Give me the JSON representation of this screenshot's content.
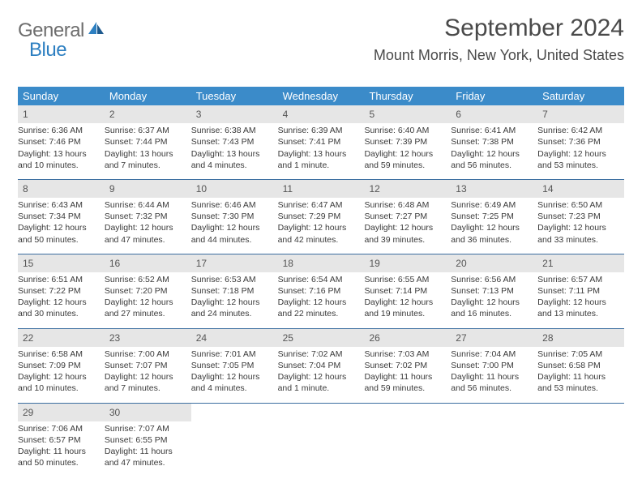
{
  "brand": {
    "part1": "General",
    "part2": "Blue"
  },
  "title": "September 2024",
  "location": "Mount Morris, New York, United States",
  "colors": {
    "header_bg": "#3b8bc9",
    "header_text": "#ffffff",
    "daynum_bg": "#e6e6e6",
    "row_border": "#3b6ea0",
    "logo_gray": "#6e6e6e",
    "logo_blue": "#2d7fc1",
    "text": "#3a3a3a"
  },
  "day_names": [
    "Sunday",
    "Monday",
    "Tuesday",
    "Wednesday",
    "Thursday",
    "Friday",
    "Saturday"
  ],
  "weeks": [
    [
      {
        "n": "1",
        "sr": "6:36 AM",
        "ss": "7:46 PM",
        "dl": "13 hours and 10 minutes."
      },
      {
        "n": "2",
        "sr": "6:37 AM",
        "ss": "7:44 PM",
        "dl": "13 hours and 7 minutes."
      },
      {
        "n": "3",
        "sr": "6:38 AM",
        "ss": "7:43 PM",
        "dl": "13 hours and 4 minutes."
      },
      {
        "n": "4",
        "sr": "6:39 AM",
        "ss": "7:41 PM",
        "dl": "13 hours and 1 minute."
      },
      {
        "n": "5",
        "sr": "6:40 AM",
        "ss": "7:39 PM",
        "dl": "12 hours and 59 minutes."
      },
      {
        "n": "6",
        "sr": "6:41 AM",
        "ss": "7:38 PM",
        "dl": "12 hours and 56 minutes."
      },
      {
        "n": "7",
        "sr": "6:42 AM",
        "ss": "7:36 PM",
        "dl": "12 hours and 53 minutes."
      }
    ],
    [
      {
        "n": "8",
        "sr": "6:43 AM",
        "ss": "7:34 PM",
        "dl": "12 hours and 50 minutes."
      },
      {
        "n": "9",
        "sr": "6:44 AM",
        "ss": "7:32 PM",
        "dl": "12 hours and 47 minutes."
      },
      {
        "n": "10",
        "sr": "6:46 AM",
        "ss": "7:30 PM",
        "dl": "12 hours and 44 minutes."
      },
      {
        "n": "11",
        "sr": "6:47 AM",
        "ss": "7:29 PM",
        "dl": "12 hours and 42 minutes."
      },
      {
        "n": "12",
        "sr": "6:48 AM",
        "ss": "7:27 PM",
        "dl": "12 hours and 39 minutes."
      },
      {
        "n": "13",
        "sr": "6:49 AM",
        "ss": "7:25 PM",
        "dl": "12 hours and 36 minutes."
      },
      {
        "n": "14",
        "sr": "6:50 AM",
        "ss": "7:23 PM",
        "dl": "12 hours and 33 minutes."
      }
    ],
    [
      {
        "n": "15",
        "sr": "6:51 AM",
        "ss": "7:22 PM",
        "dl": "12 hours and 30 minutes."
      },
      {
        "n": "16",
        "sr": "6:52 AM",
        "ss": "7:20 PM",
        "dl": "12 hours and 27 minutes."
      },
      {
        "n": "17",
        "sr": "6:53 AM",
        "ss": "7:18 PM",
        "dl": "12 hours and 24 minutes."
      },
      {
        "n": "18",
        "sr": "6:54 AM",
        "ss": "7:16 PM",
        "dl": "12 hours and 22 minutes."
      },
      {
        "n": "19",
        "sr": "6:55 AM",
        "ss": "7:14 PM",
        "dl": "12 hours and 19 minutes."
      },
      {
        "n": "20",
        "sr": "6:56 AM",
        "ss": "7:13 PM",
        "dl": "12 hours and 16 minutes."
      },
      {
        "n": "21",
        "sr": "6:57 AM",
        "ss": "7:11 PM",
        "dl": "12 hours and 13 minutes."
      }
    ],
    [
      {
        "n": "22",
        "sr": "6:58 AM",
        "ss": "7:09 PM",
        "dl": "12 hours and 10 minutes."
      },
      {
        "n": "23",
        "sr": "7:00 AM",
        "ss": "7:07 PM",
        "dl": "12 hours and 7 minutes."
      },
      {
        "n": "24",
        "sr": "7:01 AM",
        "ss": "7:05 PM",
        "dl": "12 hours and 4 minutes."
      },
      {
        "n": "25",
        "sr": "7:02 AM",
        "ss": "7:04 PM",
        "dl": "12 hours and 1 minute."
      },
      {
        "n": "26",
        "sr": "7:03 AM",
        "ss": "7:02 PM",
        "dl": "11 hours and 59 minutes."
      },
      {
        "n": "27",
        "sr": "7:04 AM",
        "ss": "7:00 PM",
        "dl": "11 hours and 56 minutes."
      },
      {
        "n": "28",
        "sr": "7:05 AM",
        "ss": "6:58 PM",
        "dl": "11 hours and 53 minutes."
      }
    ],
    [
      {
        "n": "29",
        "sr": "7:06 AM",
        "ss": "6:57 PM",
        "dl": "11 hours and 50 minutes."
      },
      {
        "n": "30",
        "sr": "7:07 AM",
        "ss": "6:55 PM",
        "dl": "11 hours and 47 minutes."
      },
      null,
      null,
      null,
      null,
      null
    ]
  ],
  "labels": {
    "sunrise": "Sunrise: ",
    "sunset": "Sunset: ",
    "daylight": "Daylight: "
  }
}
